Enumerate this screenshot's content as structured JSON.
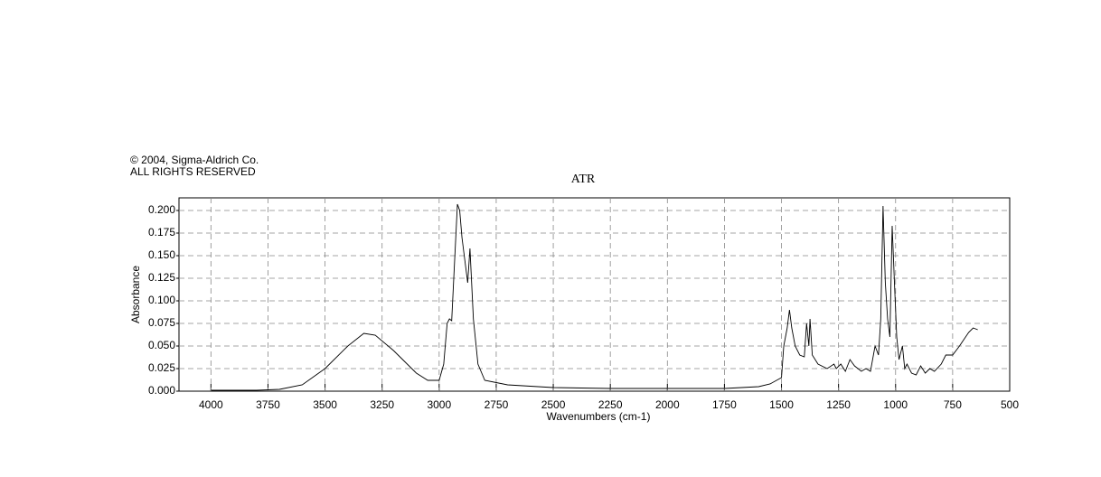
{
  "chart_data": {
    "type": "line",
    "copyright": [
      "© 2004, Sigma-Aldrich Co.",
      "ALL RIGHTS RESERVED"
    ],
    "title": "ATR",
    "x_label": "Wavenumbers (cm-1)",
    "y_label": "Absorbance",
    "color": "#000000",
    "grid": true,
    "xlim": [
      4140,
      500
    ],
    "ylim": [
      0,
      0.214
    ],
    "xticks": [
      4000,
      3750,
      3500,
      3250,
      3000,
      2750,
      2500,
      2250,
      2000,
      1750,
      1500,
      1250,
      1000,
      750,
      500
    ],
    "yticks": [
      {
        "value": 0,
        "label": "0.000"
      },
      0.025,
      {
        "value": 0.05,
        "label": "0.050"
      },
      0.075,
      {
        "value": 0.1,
        "label": "0.100"
      },
      0.125,
      {
        "value": 0.15,
        "label": "0.150"
      },
      0.175,
      {
        "value": 0.2,
        "label": "0.200"
      }
    ],
    "x": [
      4000,
      3800,
      3700,
      3600,
      3500,
      3400,
      3330,
      3280,
      3200,
      3100,
      3050,
      3000,
      2980,
      2965,
      2955,
      2945,
      2935,
      2920,
      2910,
      2900,
      2885,
      2875,
      2865,
      2850,
      2830,
      2800,
      2700,
      2500,
      2250,
      2000,
      1750,
      1600,
      1550,
      1500,
      1490,
      1475,
      1465,
      1455,
      1440,
      1420,
      1400,
      1390,
      1380,
      1375,
      1365,
      1340,
      1300,
      1270,
      1260,
      1240,
      1220,
      1200,
      1180,
      1150,
      1130,
      1110,
      1090,
      1075,
      1065,
      1055,
      1045,
      1035,
      1025,
      1015,
      1005,
      995,
      985,
      970,
      960,
      950,
      930,
      910,
      890,
      870,
      850,
      830,
      800,
      780,
      750,
      720,
      680,
      660,
      640
    ],
    "values": [
      0.001,
      0.001,
      0.002,
      0.007,
      0.025,
      0.05,
      0.064,
      0.062,
      0.045,
      0.02,
      0.012,
      0.012,
      0.03,
      0.075,
      0.08,
      0.078,
      0.13,
      0.207,
      0.2,
      0.17,
      0.14,
      0.12,
      0.158,
      0.08,
      0.03,
      0.012,
      0.007,
      0.004,
      0.003,
      0.003,
      0.003,
      0.005,
      0.008,
      0.015,
      0.05,
      0.07,
      0.09,
      0.07,
      0.05,
      0.04,
      0.038,
      0.075,
      0.05,
      0.08,
      0.04,
      0.03,
      0.025,
      0.03,
      0.025,
      0.03,
      0.022,
      0.035,
      0.028,
      0.022,
      0.025,
      0.022,
      0.05,
      0.04,
      0.08,
      0.205,
      0.12,
      0.08,
      0.06,
      0.183,
      0.12,
      0.06,
      0.035,
      0.05,
      0.025,
      0.03,
      0.02,
      0.018,
      0.028,
      0.02,
      0.025,
      0.022,
      0.03,
      0.04,
      0.04,
      0.05,
      0.065,
      0.07,
      0.068
    ]
  }
}
